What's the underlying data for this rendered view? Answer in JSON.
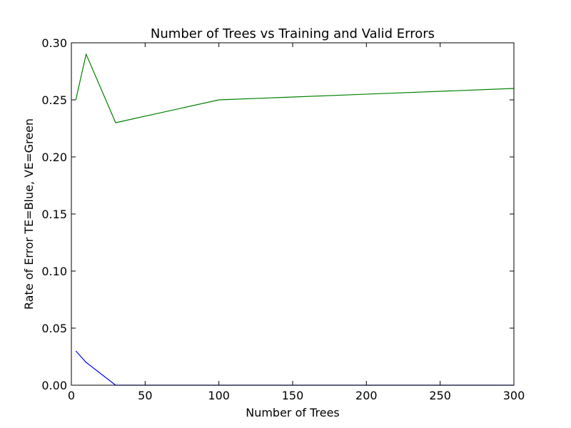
{
  "chart_data": {
    "type": "line",
    "title": "Number of Trees  vs Training and Valid Errors",
    "xlabel": "Number of Trees",
    "ylabel": "Rate of Error TE=Blue, VE=Green",
    "xlim": [
      0,
      300
    ],
    "ylim": [
      0,
      0.3
    ],
    "x_ticks": [
      "0",
      "50",
      "100",
      "150",
      "200",
      "250",
      "300"
    ],
    "y_ticks": [
      "0.00",
      "0.05",
      "0.10",
      "0.15",
      "0.20",
      "0.25",
      "0.30"
    ],
    "grid": false,
    "series": [
      {
        "color": "#0000ff",
        "x": [
          3,
          10,
          30,
          100,
          300
        ],
        "y": [
          0.03,
          0.02,
          0.0,
          0.0,
          0.0
        ]
      },
      {
        "color": "#008000",
        "x": [
          3,
          10,
          30,
          100,
          300
        ],
        "y": [
          0.25,
          0.29,
          0.23,
          0.25,
          0.26
        ]
      }
    ]
  }
}
